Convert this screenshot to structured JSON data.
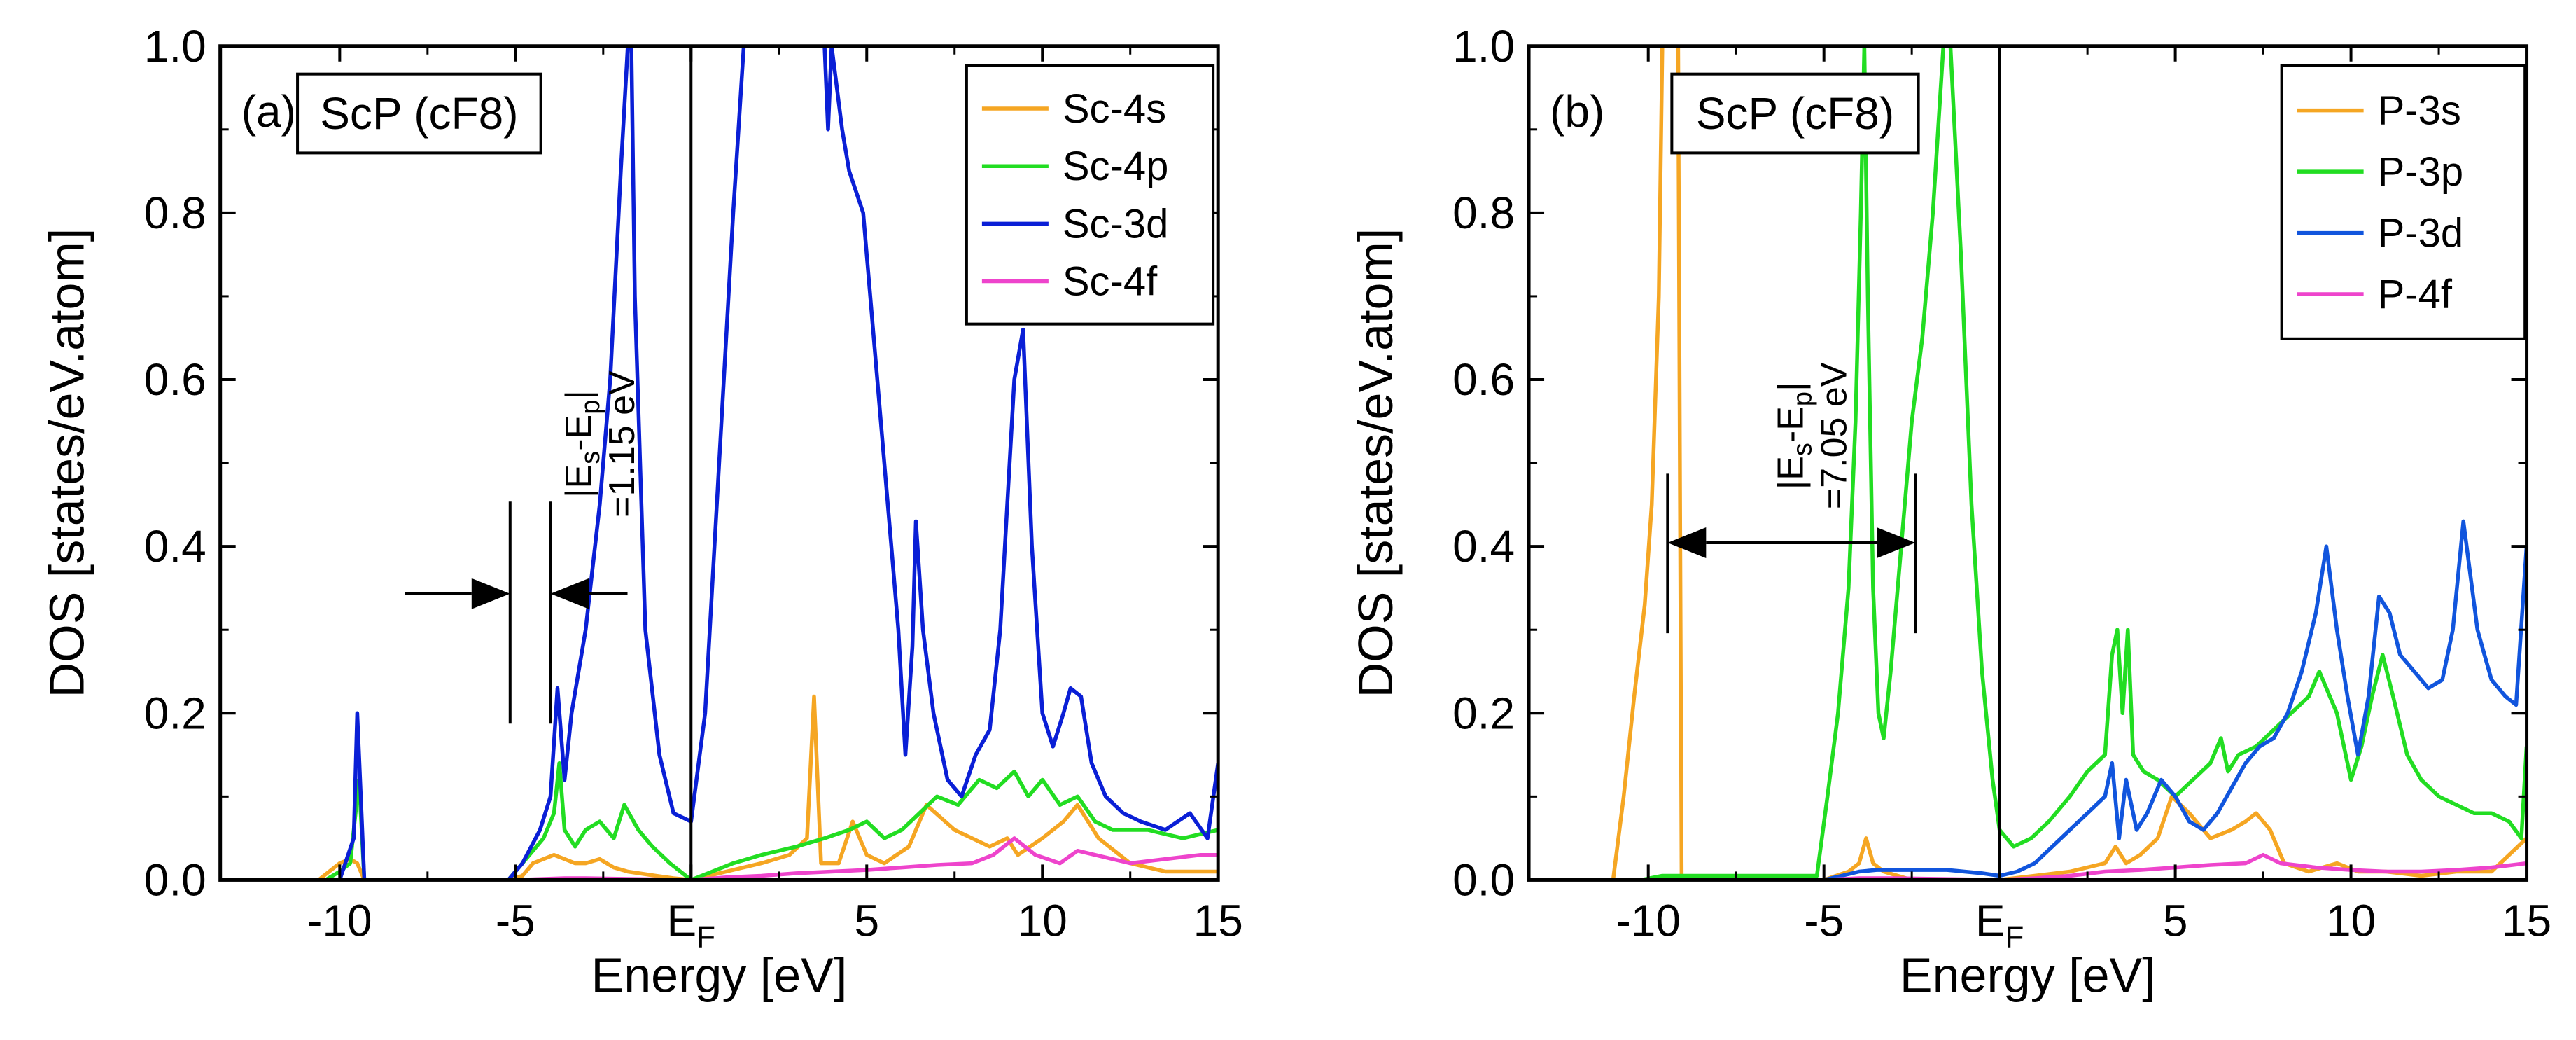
{
  "chart_data": [
    {
      "type": "line",
      "panel_label": "(a)",
      "title": "ScP (cF8)",
      "xlabel": "Energy [eV]",
      "ylabel": "DOS [states/eV.atom]",
      "xlim": [
        -13.4,
        15
      ],
      "ylim": [
        0,
        1.0
      ],
      "x_ticks": [
        -10,
        -5,
        0,
        5,
        10,
        15
      ],
      "x_tick_labels": [
        "-10",
        "-5",
        "E",
        "5",
        "10",
        "15"
      ],
      "fermi_label": {
        "main": "E",
        "sub": "F"
      },
      "y_ticks": [
        0,
        0.2,
        0.4,
        0.6,
        0.8,
        1.0
      ],
      "y_tick_labels": [
        "0.0",
        "0.2",
        "0.4",
        "0.6",
        "0.8",
        "1.0"
      ],
      "grid": false,
      "legend_position": "top-right",
      "fermi_level": 0,
      "annotation": {
        "text_main": "|E",
        "text_sub1": "s",
        "text_mid": "-E",
        "text_sub2": "p",
        "text_end": "|",
        "value": "=1.15 eV",
        "from_x": -5.15,
        "to_x": -4.0
      },
      "series": [
        {
          "name": "Sc-4s",
          "color": "#f5a623",
          "x": [
            -13.4,
            -10.6,
            -10.0,
            -9.7,
            -9.5,
            -9.3,
            -5.2,
            -4.8,
            -4.5,
            -4.2,
            -3.9,
            -3.6,
            -3.3,
            -3.0,
            -2.6,
            -2.2,
            -1.8,
            -1.0,
            -0.5,
            0,
            0.5,
            1.0,
            2.0,
            2.8,
            3.3,
            3.5,
            3.7,
            4.2,
            4.6,
            5.0,
            5.5,
            6.2,
            6.7,
            7.5,
            8.5,
            9.0,
            9.3,
            10.0,
            10.6,
            11.0,
            11.6,
            12.5,
            13.5,
            15.0
          ],
          "y": [
            0.0,
            0.0,
            0.02,
            0.025,
            0.02,
            0.0,
            0.0,
            0.005,
            0.02,
            0.025,
            0.03,
            0.025,
            0.02,
            0.02,
            0.025,
            0.015,
            0.01,
            0.005,
            0.002,
            0.0,
            0.005,
            0.01,
            0.02,
            0.03,
            0.05,
            0.22,
            0.02,
            0.02,
            0.07,
            0.03,
            0.02,
            0.04,
            0.09,
            0.06,
            0.04,
            0.05,
            0.03,
            0.05,
            0.07,
            0.09,
            0.05,
            0.02,
            0.01,
            0.01
          ]
        },
        {
          "name": "Sc-4p",
          "color": "#22dd22",
          "x": [
            -13.4,
            -10.4,
            -10.0,
            -9.7,
            -9.45,
            -9.3,
            -5.2,
            -4.6,
            -4.2,
            -3.9,
            -3.75,
            -3.6,
            -3.3,
            -3.0,
            -2.6,
            -2.2,
            -1.9,
            -1.5,
            -1.1,
            -0.6,
            0,
            0.6,
            1.2,
            2.0,
            3.0,
            3.8,
            4.5,
            5.0,
            5.5,
            6.0,
            6.5,
            7.0,
            7.6,
            8.2,
            8.7,
            9.2,
            9.6,
            10.0,
            10.5,
            11.0,
            11.5,
            12.0,
            13.0,
            14.0,
            15.0
          ],
          "y": [
            0.0,
            0.0,
            0.01,
            0.02,
            0.12,
            0.0,
            0.0,
            0.03,
            0.05,
            0.08,
            0.14,
            0.06,
            0.04,
            0.06,
            0.07,
            0.05,
            0.09,
            0.06,
            0.04,
            0.02,
            0.0,
            0.01,
            0.02,
            0.03,
            0.04,
            0.05,
            0.06,
            0.07,
            0.05,
            0.06,
            0.08,
            0.1,
            0.09,
            0.12,
            0.11,
            0.13,
            0.1,
            0.12,
            0.09,
            0.1,
            0.07,
            0.06,
            0.06,
            0.05,
            0.06
          ]
        },
        {
          "name": "Sc-3d",
          "color": "#0a1fd6",
          "x": [
            -13.4,
            -10.0,
            -9.6,
            -9.5,
            -9.4,
            -9.3,
            -5.2,
            -4.8,
            -4.3,
            -4.0,
            -3.8,
            -3.6,
            -3.4,
            -3.0,
            -2.6,
            -2.3,
            -2.0,
            -1.8,
            -1.75,
            -1.7,
            -1.6,
            -1.3,
            -0.9,
            -0.5,
            0,
            0.4,
            0.8,
            1.2,
            1.5,
            1.8,
            2.1,
            2.4,
            2.8,
            3.2,
            3.5,
            3.8,
            3.9,
            4.0,
            4.3,
            4.5,
            4.9,
            5.2,
            5.6,
            5.9,
            6.1,
            6.3,
            6.4,
            6.6,
            6.9,
            7.3,
            7.7,
            8.1,
            8.5,
            8.8,
            9.0,
            9.2,
            9.45,
            9.7,
            10.0,
            10.3,
            10.6,
            10.8,
            11.1,
            11.4,
            11.8,
            12.3,
            12.8,
            13.5,
            14.2,
            14.7,
            15.0
          ],
          "y": [
            0.0,
            0.0,
            0.05,
            0.2,
            0.1,
            0.0,
            0.0,
            0.02,
            0.06,
            0.1,
            0.23,
            0.12,
            0.2,
            0.3,
            0.45,
            0.6,
            0.85,
            1.0,
            1.0,
            1.0,
            0.7,
            0.3,
            0.15,
            0.08,
            0.07,
            0.2,
            0.5,
            0.8,
            1.0,
            1.0,
            1.0,
            1.0,
            1.0,
            1.0,
            1.0,
            1.0,
            0.9,
            1.0,
            0.9,
            0.85,
            0.8,
            0.65,
            0.45,
            0.3,
            0.15,
            0.28,
            0.43,
            0.3,
            0.2,
            0.12,
            0.1,
            0.15,
            0.18,
            0.3,
            0.45,
            0.6,
            0.66,
            0.4,
            0.2,
            0.16,
            0.2,
            0.23,
            0.22,
            0.14,
            0.1,
            0.08,
            0.07,
            0.06,
            0.08,
            0.05,
            0.14
          ]
        },
        {
          "name": "Sc-4f",
          "color": "#ee44cc",
          "x": [
            -13.4,
            -5.0,
            -3.6,
            -3.0,
            0,
            1.0,
            2.0,
            3.0,
            4.0,
            5.0,
            6.0,
            7.0,
            8.0,
            8.6,
            9.2,
            9.8,
            10.5,
            11.0,
            11.5,
            12.5,
            13.5,
            14.5,
            15.0
          ],
          "y": [
            0.0,
            0.0,
            0.002,
            0.002,
            0.0,
            0.003,
            0.005,
            0.008,
            0.01,
            0.012,
            0.015,
            0.018,
            0.02,
            0.03,
            0.05,
            0.03,
            0.02,
            0.035,
            0.03,
            0.02,
            0.025,
            0.03,
            0.03
          ]
        }
      ]
    },
    {
      "type": "line",
      "panel_label": "(b)",
      "title": "ScP (cF8)",
      "xlabel": "Energy [eV]",
      "ylabel": "DOS [states/eV.atom]",
      "xlim": [
        -13.4,
        15
      ],
      "ylim": [
        0,
        1.0
      ],
      "x_ticks": [
        -10,
        -5,
        0,
        5,
        10,
        15
      ],
      "x_tick_labels": [
        "-10",
        "-5",
        "E",
        "5",
        "10",
        "15"
      ],
      "fermi_label": {
        "main": "E",
        "sub": "F"
      },
      "y_ticks": [
        0,
        0.2,
        0.4,
        0.6,
        0.8,
        1.0
      ],
      "y_tick_labels": [
        "0.0",
        "0.2",
        "0.4",
        "0.6",
        "0.8",
        "1.0"
      ],
      "grid": false,
      "legend_position": "top-right",
      "fermi_level": 0,
      "annotation": {
        "text_main": "|E",
        "text_sub1": "s",
        "text_mid": "-E",
        "text_sub2": "p",
        "text_end": "|",
        "value": "=7.05 eV",
        "from_x": -9.45,
        "to_x": -2.4
      },
      "series": [
        {
          "name": "P-3s",
          "color": "#f5a623",
          "x": [
            -13.4,
            -11.0,
            -10.7,
            -10.4,
            -10.1,
            -9.9,
            -9.7,
            -9.6,
            -9.5,
            -9.4,
            -9.3,
            -9.15,
            -9.05,
            -5.0,
            -4.3,
            -4.0,
            -3.8,
            -3.6,
            -3.3,
            -2.5,
            -1.5,
            -0.5,
            0,
            1.0,
            2.0,
            3.0,
            3.3,
            3.6,
            4.0,
            4.5,
            4.9,
            5.4,
            6.0,
            6.6,
            7.0,
            7.3,
            7.7,
            8.1,
            8.8,
            9.6,
            10.2,
            11.0,
            12.0,
            13.0,
            14.0,
            15.0
          ],
          "y": [
            0.0,
            0.0,
            0.1,
            0.22,
            0.33,
            0.45,
            0.7,
            1.0,
            1.0,
            1.0,
            1.0,
            1.0,
            0.0,
            0.0,
            0.01,
            0.02,
            0.05,
            0.02,
            0.01,
            0.0,
            0.0,
            0.0,
            0.0,
            0.005,
            0.01,
            0.02,
            0.04,
            0.02,
            0.03,
            0.05,
            0.1,
            0.08,
            0.05,
            0.06,
            0.07,
            0.08,
            0.06,
            0.02,
            0.01,
            0.02,
            0.01,
            0.01,
            0.005,
            0.01,
            0.01,
            0.05
          ]
        },
        {
          "name": "P-3p",
          "color": "#22dd22",
          "x": [
            -13.4,
            -10.2,
            -9.6,
            -5.2,
            -4.9,
            -4.6,
            -4.3,
            -4.1,
            -3.95,
            -3.85,
            -3.75,
            -3.6,
            -3.45,
            -3.3,
            -3.1,
            -2.8,
            -2.5,
            -2.2,
            -1.9,
            -1.6,
            -1.4,
            -1.1,
            -0.8,
            -0.5,
            -0.2,
            0,
            0.4,
            0.9,
            1.4,
            2.0,
            2.5,
            3.0,
            3.2,
            3.35,
            3.5,
            3.65,
            3.8,
            4.1,
            4.5,
            5.0,
            5.5,
            6.0,
            6.3,
            6.5,
            6.8,
            7.3,
            7.8,
            8.3,
            8.8,
            9.1,
            9.3,
            9.6,
            10.0,
            10.3,
            10.6,
            10.9,
            11.2,
            11.6,
            12.0,
            12.5,
            13.0,
            13.5,
            14.0,
            14.5,
            14.85,
            15.0
          ],
          "y": [
            0.0,
            0.0,
            0.005,
            0.005,
            0.1,
            0.2,
            0.35,
            0.55,
            0.8,
            1.0,
            0.7,
            0.35,
            0.2,
            0.17,
            0.25,
            0.4,
            0.55,
            0.65,
            0.8,
            1.0,
            1.0,
            0.75,
            0.45,
            0.25,
            0.12,
            0.06,
            0.04,
            0.05,
            0.07,
            0.1,
            0.13,
            0.15,
            0.27,
            0.3,
            0.2,
            0.3,
            0.15,
            0.13,
            0.12,
            0.1,
            0.12,
            0.14,
            0.17,
            0.13,
            0.15,
            0.16,
            0.18,
            0.2,
            0.22,
            0.25,
            0.23,
            0.2,
            0.12,
            0.16,
            0.22,
            0.27,
            0.22,
            0.15,
            0.12,
            0.1,
            0.09,
            0.08,
            0.08,
            0.07,
            0.05,
            0.16
          ]
        },
        {
          "name": "P-3d",
          "color": "#1155dd",
          "x": [
            -13.4,
            -5.0,
            -4.5,
            -4.0,
            -3.5,
            -3.0,
            -2.5,
            -2.0,
            -1.5,
            -1.0,
            -0.5,
            0,
            0.5,
            1.0,
            1.5,
            2.0,
            2.5,
            3.0,
            3.2,
            3.4,
            3.6,
            3.9,
            4.2,
            4.6,
            5.0,
            5.4,
            5.8,
            6.2,
            6.6,
            7.0,
            7.4,
            7.8,
            8.2,
            8.6,
            9.0,
            9.3,
            9.6,
            9.9,
            10.2,
            10.5,
            10.8,
            11.1,
            11.4,
            11.8,
            12.2,
            12.6,
            12.9,
            13.2,
            13.6,
            14.0,
            14.4,
            14.7,
            15.0
          ],
          "y": [
            0.0,
            0.0,
            0.005,
            0.01,
            0.012,
            0.012,
            0.012,
            0.012,
            0.012,
            0.01,
            0.008,
            0.005,
            0.01,
            0.02,
            0.04,
            0.06,
            0.08,
            0.1,
            0.14,
            0.05,
            0.12,
            0.06,
            0.08,
            0.12,
            0.1,
            0.07,
            0.06,
            0.08,
            0.11,
            0.14,
            0.16,
            0.17,
            0.2,
            0.25,
            0.32,
            0.4,
            0.3,
            0.22,
            0.15,
            0.22,
            0.34,
            0.32,
            0.27,
            0.25,
            0.23,
            0.24,
            0.3,
            0.43,
            0.3,
            0.24,
            0.22,
            0.21,
            0.4
          ]
        },
        {
          "name": "P-4f",
          "color": "#ee44cc",
          "x": [
            -13.4,
            -5.0,
            -4.0,
            -3.0,
            0,
            1.0,
            2.0,
            3.0,
            4.0,
            5.0,
            6.0,
            7.0,
            7.5,
            8.0,
            9.0,
            10.0,
            11.0,
            12.0,
            13.0,
            14.0,
            15.0
          ],
          "y": [
            0.0,
            0.0,
            0.002,
            0.002,
            0.0,
            0.002,
            0.005,
            0.01,
            0.012,
            0.015,
            0.018,
            0.02,
            0.03,
            0.02,
            0.015,
            0.012,
            0.01,
            0.01,
            0.012,
            0.015,
            0.02
          ]
        }
      ]
    }
  ]
}
